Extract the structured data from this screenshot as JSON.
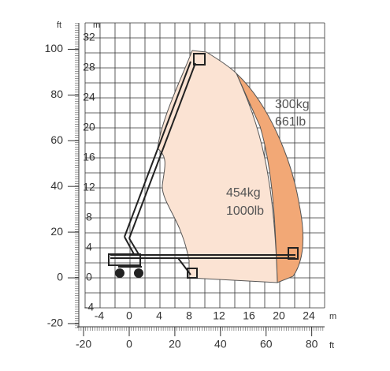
{
  "axes": {
    "left_ft": {
      "unit": "ft",
      "ticks": [
        -20,
        0,
        20,
        40,
        60,
        80,
        100
      ]
    },
    "left_m": {
      "unit": "m",
      "ticks": [
        -4,
        0,
        4,
        8,
        12,
        16,
        20,
        24,
        28,
        32
      ]
    },
    "bottom_m": {
      "unit": "m",
      "ticks": [
        -4,
        0,
        4,
        8,
        12,
        16,
        20,
        24
      ]
    },
    "bottom_ft": {
      "unit": "ft",
      "ticks": [
        -20,
        0,
        20,
        40,
        60,
        80
      ]
    }
  },
  "zones": [
    {
      "load": "300kg",
      "load_imperial": "661lb"
    },
    {
      "load": "454kg",
      "load_imperial": "1000lb"
    }
  ]
}
